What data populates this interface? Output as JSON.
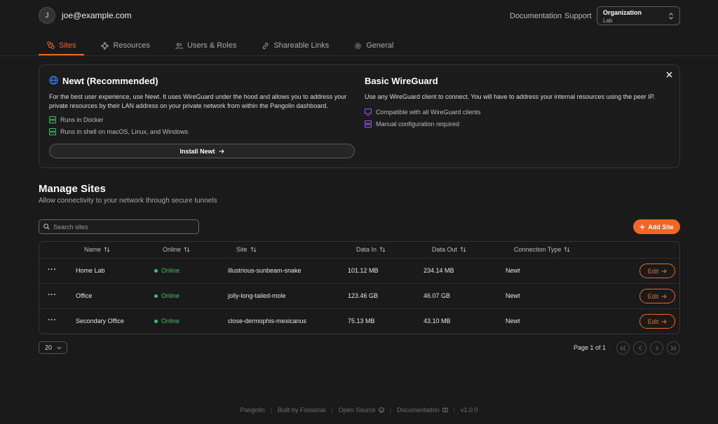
{
  "header": {
    "avatar_letter": "J",
    "user_email": "joe@example.com",
    "documentation_link": "Documentation",
    "support_link": "Support",
    "org_label": "Organization",
    "org_value": "Lab"
  },
  "tabs": [
    {
      "label": "Sites",
      "icon": "sites-icon",
      "active": true
    },
    {
      "label": "Resources",
      "icon": "waypoints-icon"
    },
    {
      "label": "Users & Roles",
      "icon": "users-icon"
    },
    {
      "label": "Shareable Links",
      "icon": "link-icon"
    },
    {
      "label": "General",
      "icon": "gear-icon"
    }
  ],
  "info_card": {
    "newt": {
      "title": "Newt (Recommended)",
      "description": "For the best user experience, use Newt. It uses WireGuard under the hood and allows you to address your private resources by their LAN address on your private network from within the Pangolin dashboard.",
      "features": [
        "Runs in Docker",
        "Runs in shell on macOS, Linux, and Windows"
      ],
      "button": "Install Newt"
    },
    "wireguard": {
      "title": "Basic WireGuard",
      "description": "Use any WireGuard client to connect. You will have to address your internal resources using the peer IP.",
      "features": [
        "Compatible with all WireGuard clients",
        "Manual configuration required"
      ]
    }
  },
  "manage": {
    "title": "Manage Sites",
    "subtitle": "Allow connectivity to your network through secure tunnels",
    "search_placeholder": "Search sites",
    "add_button": "Add Site"
  },
  "table": {
    "columns": [
      "Name",
      "Online",
      "Site",
      "Data In",
      "Data Out",
      "Connection Type"
    ],
    "rows": [
      {
        "name": "Home Lab",
        "online": "Online",
        "site": "illustrious-sunbeam-snake",
        "data_in": "101.12 MB",
        "data_out": "234.14 MB",
        "type": "Newt",
        "edit": "Edit"
      },
      {
        "name": "Office",
        "online": "Online",
        "site": "jolly-long-tailed-mole",
        "data_in": "123.46 GB",
        "data_out": "46.07 GB",
        "type": "Newt",
        "edit": "Edit"
      },
      {
        "name": "Secondary Office",
        "online": "Online",
        "site": "close-dermophis-mexicanus",
        "data_in": "75.13 MB",
        "data_out": "43.10 MB",
        "type": "Newt",
        "edit": "Edit"
      }
    ]
  },
  "pagination": {
    "page_size": "20",
    "page_info": "Page 1 of 1"
  },
  "footer": {
    "brand": "Pangolin",
    "built_by": "Built by Fossorial",
    "open_source": "Open Source",
    "documentation": "Documentation",
    "version": "v1.0.0"
  },
  "colors": {
    "accent": "#f26522",
    "online": "#3fc06a",
    "newt_icon": "#3fc06a",
    "wireguard_icon": "#a855f7",
    "globe_icon": "#3b82f6"
  }
}
